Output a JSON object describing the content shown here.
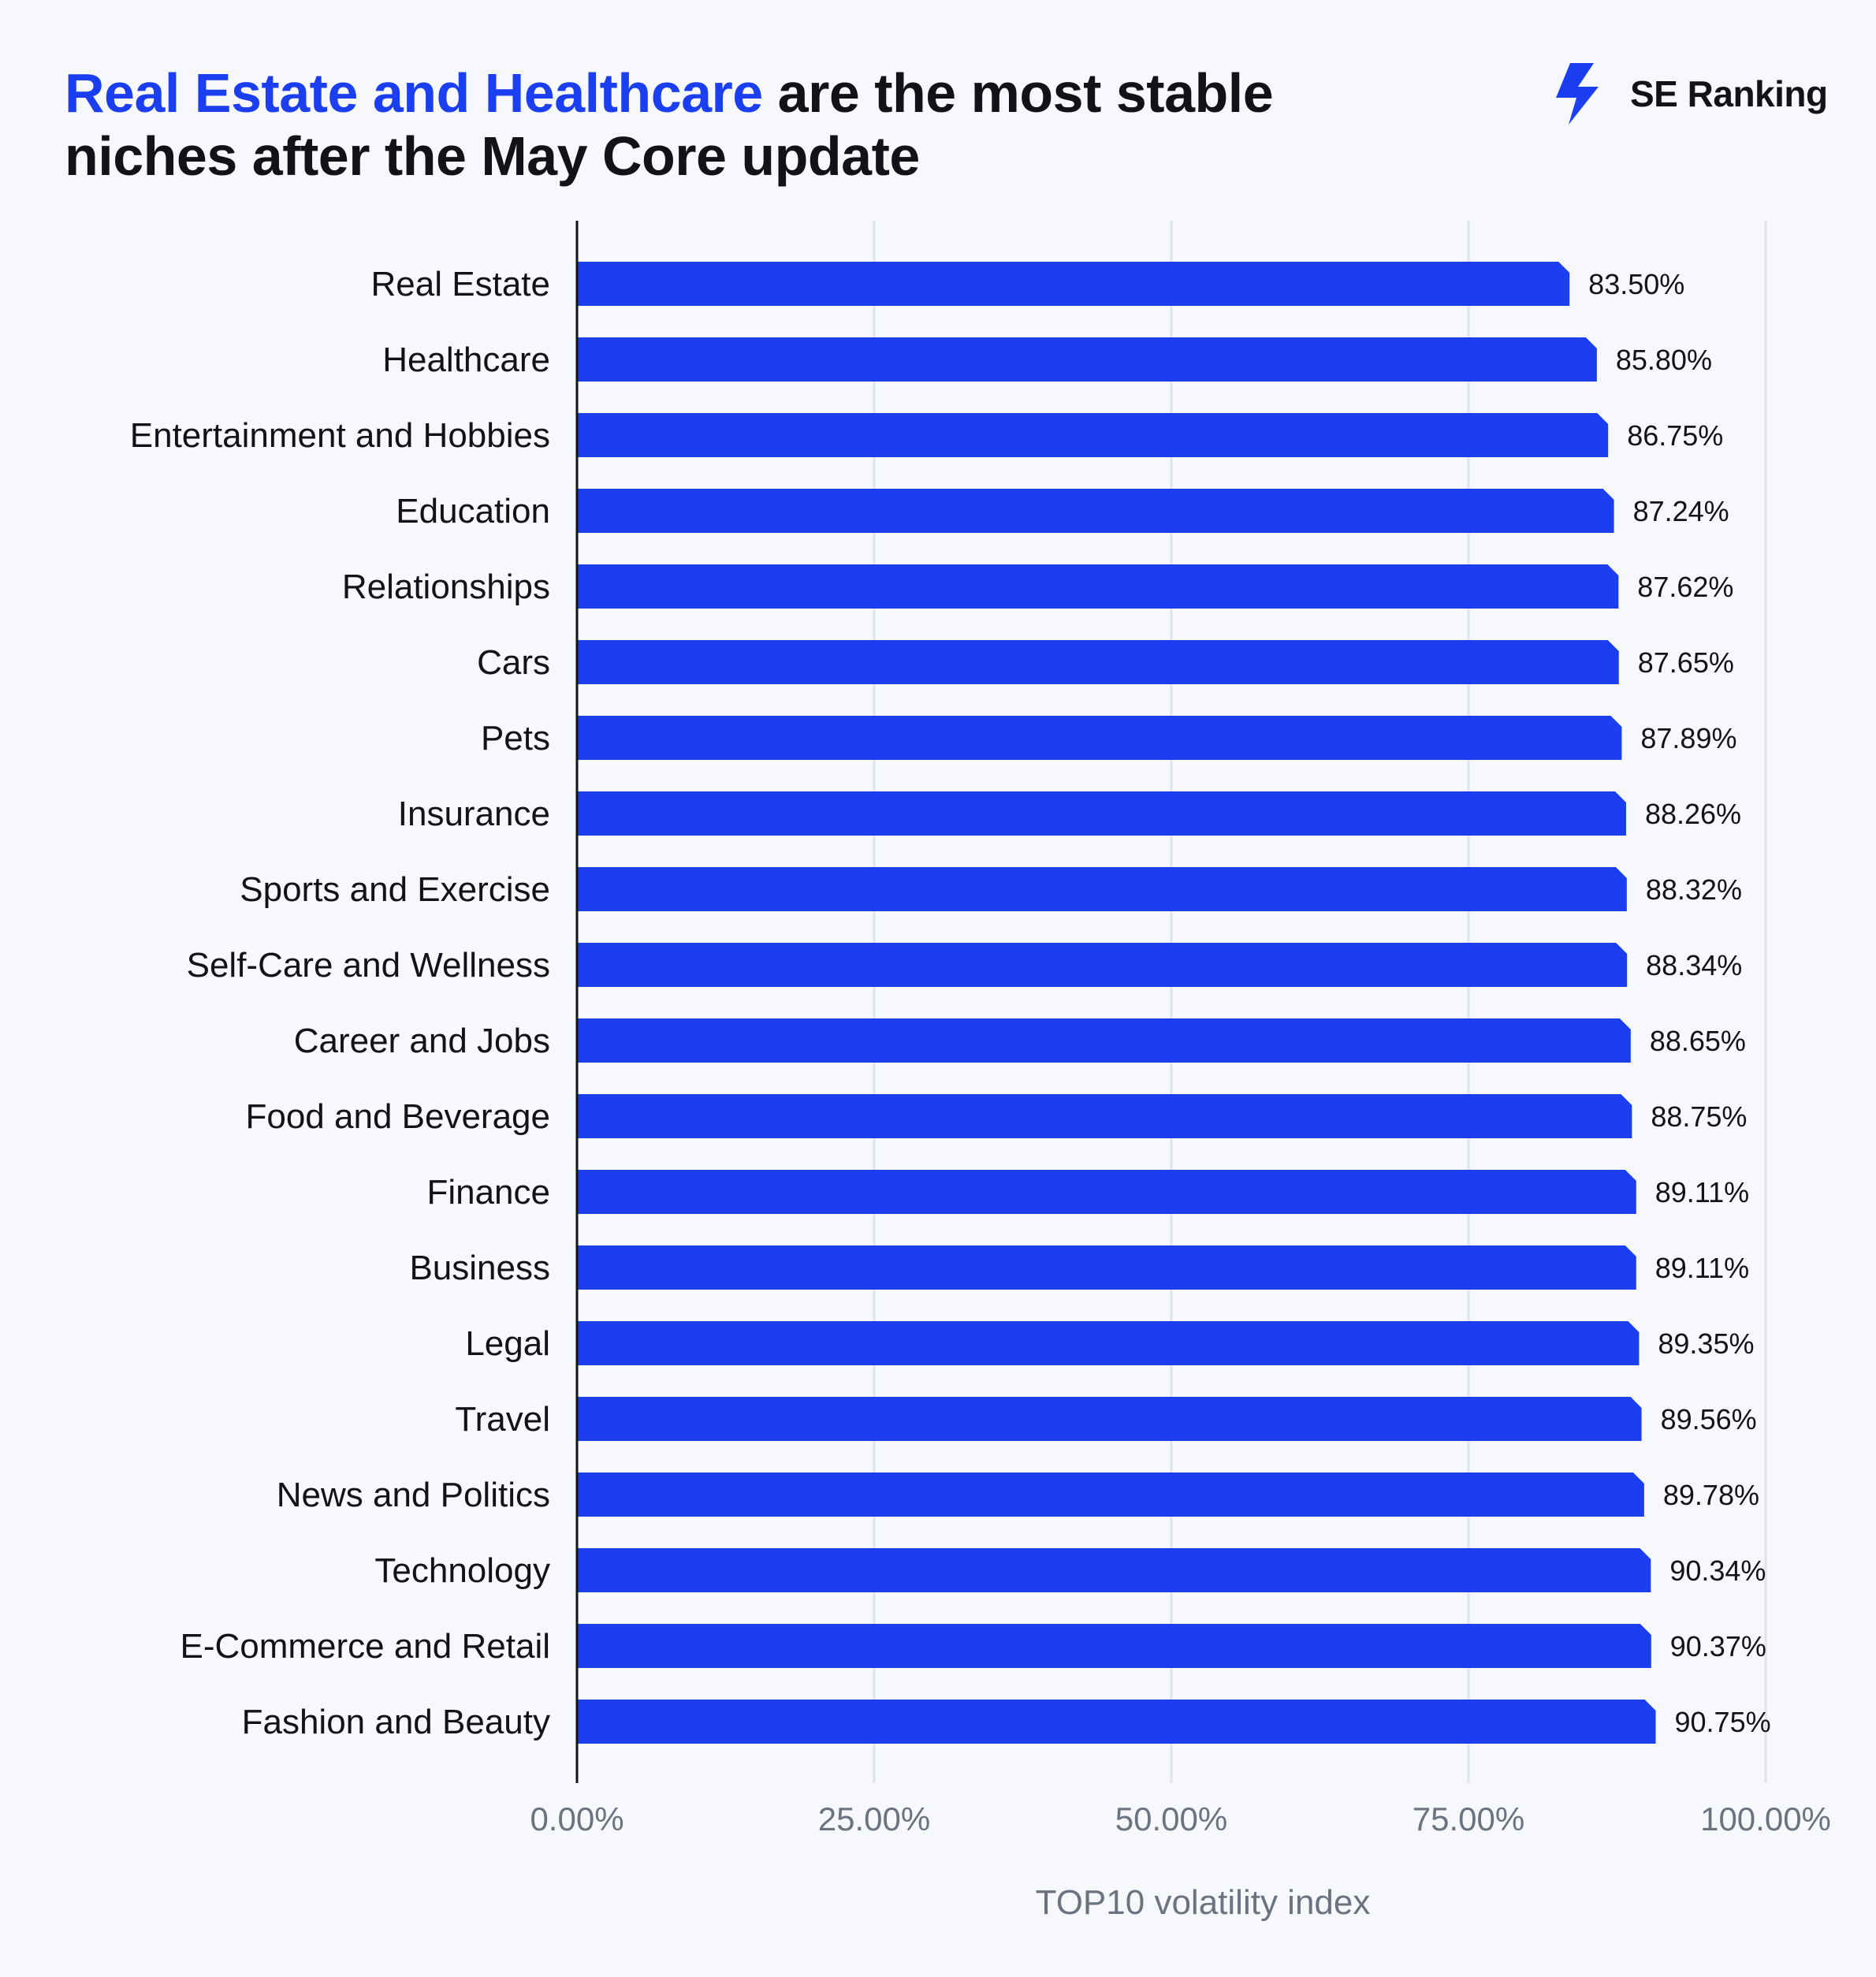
{
  "header": {
    "title_highlight": "Real Estate and Healthcare",
    "title_rest": " are the most stable niches after the May Core update"
  },
  "brand": {
    "name": "SE Ranking",
    "icon": "se-ranking-bolt-icon",
    "color": "#1b3ff0"
  },
  "colors": {
    "bar": "#1b3ff0",
    "highlight": "#1b3ff0",
    "grid": "#dfe3ec",
    "axis": "#111318"
  },
  "chart_data": {
    "type": "bar",
    "orientation": "horizontal",
    "categories": [
      "Real Estate",
      "Healthcare",
      "Entertainment and Hobbies",
      "Education",
      "Relationships",
      "Cars",
      "Pets",
      "Insurance",
      "Sports and Exercise",
      "Self-Care and Wellness",
      "Career and Jobs",
      "Food and Beverage",
      "Finance",
      "Business",
      "Legal",
      "Travel",
      "News and Politics",
      "Technology",
      "E-Commerce and Retail",
      "Fashion and Beauty"
    ],
    "values": [
      83.5,
      85.8,
      86.75,
      87.24,
      87.62,
      87.65,
      87.89,
      88.26,
      88.32,
      88.34,
      88.65,
      88.75,
      89.11,
      89.11,
      89.35,
      89.56,
      89.78,
      90.34,
      90.37,
      90.75
    ],
    "value_labels": [
      "83.50%",
      "85.80%",
      "86.75%",
      "87.24%",
      "87.62%",
      "87.65%",
      "87.89%",
      "88.26%",
      "88.32%",
      "88.34%",
      "88.65%",
      "88.75%",
      "89.11%",
      "89.11%",
      "89.35%",
      "89.56%",
      "89.78%",
      "90.34%",
      "90.37%",
      "90.75%"
    ],
    "xticks": [
      0,
      25,
      50,
      75,
      100
    ],
    "xtick_labels": [
      "0.00%",
      "25.00%",
      "50.00%",
      "75.00%",
      "100.00%"
    ],
    "xlim": [
      0,
      100
    ],
    "xlabel": "TOP10 volatility index",
    "ylabel": "",
    "grid": "vertical",
    "legend": "none"
  }
}
